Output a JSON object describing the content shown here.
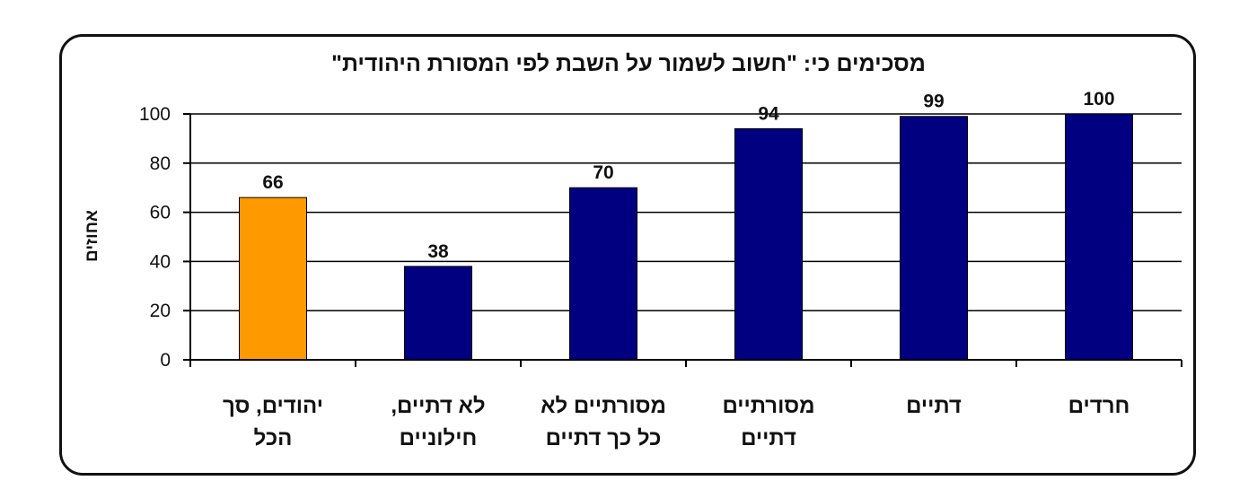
{
  "chart_data": {
    "type": "bar",
    "title": "מסכימים כי: \"חשוב לשמור על השבת לפי המסורת היהודית\"",
    "ylabel": "אחוזים",
    "xlabel": "",
    "ylim": [
      0,
      100
    ],
    "yticks": [
      "0",
      "20",
      "40",
      "60",
      "80",
      "100"
    ],
    "grid": true,
    "categories": [
      [
        "יהודים, סך",
        "הכל"
      ],
      [
        "לא דתיים,",
        "חילוניים"
      ],
      [
        "מסורתיים לא",
        "כל כך דתיים"
      ],
      [
        "מסורתיים",
        "דתיים"
      ],
      [
        "דתיים"
      ],
      [
        "חרדים"
      ]
    ],
    "values": [
      66,
      38,
      70,
      94,
      99,
      100
    ],
    "data_labels": [
      "66",
      "38",
      "70",
      "94",
      "99",
      "100"
    ],
    "colors": [
      "#FF9900",
      "#000080",
      "#000080",
      "#000080",
      "#000080",
      "#000080"
    ],
    "highlight_color": "#FF9900",
    "bar_color": "#000080"
  }
}
